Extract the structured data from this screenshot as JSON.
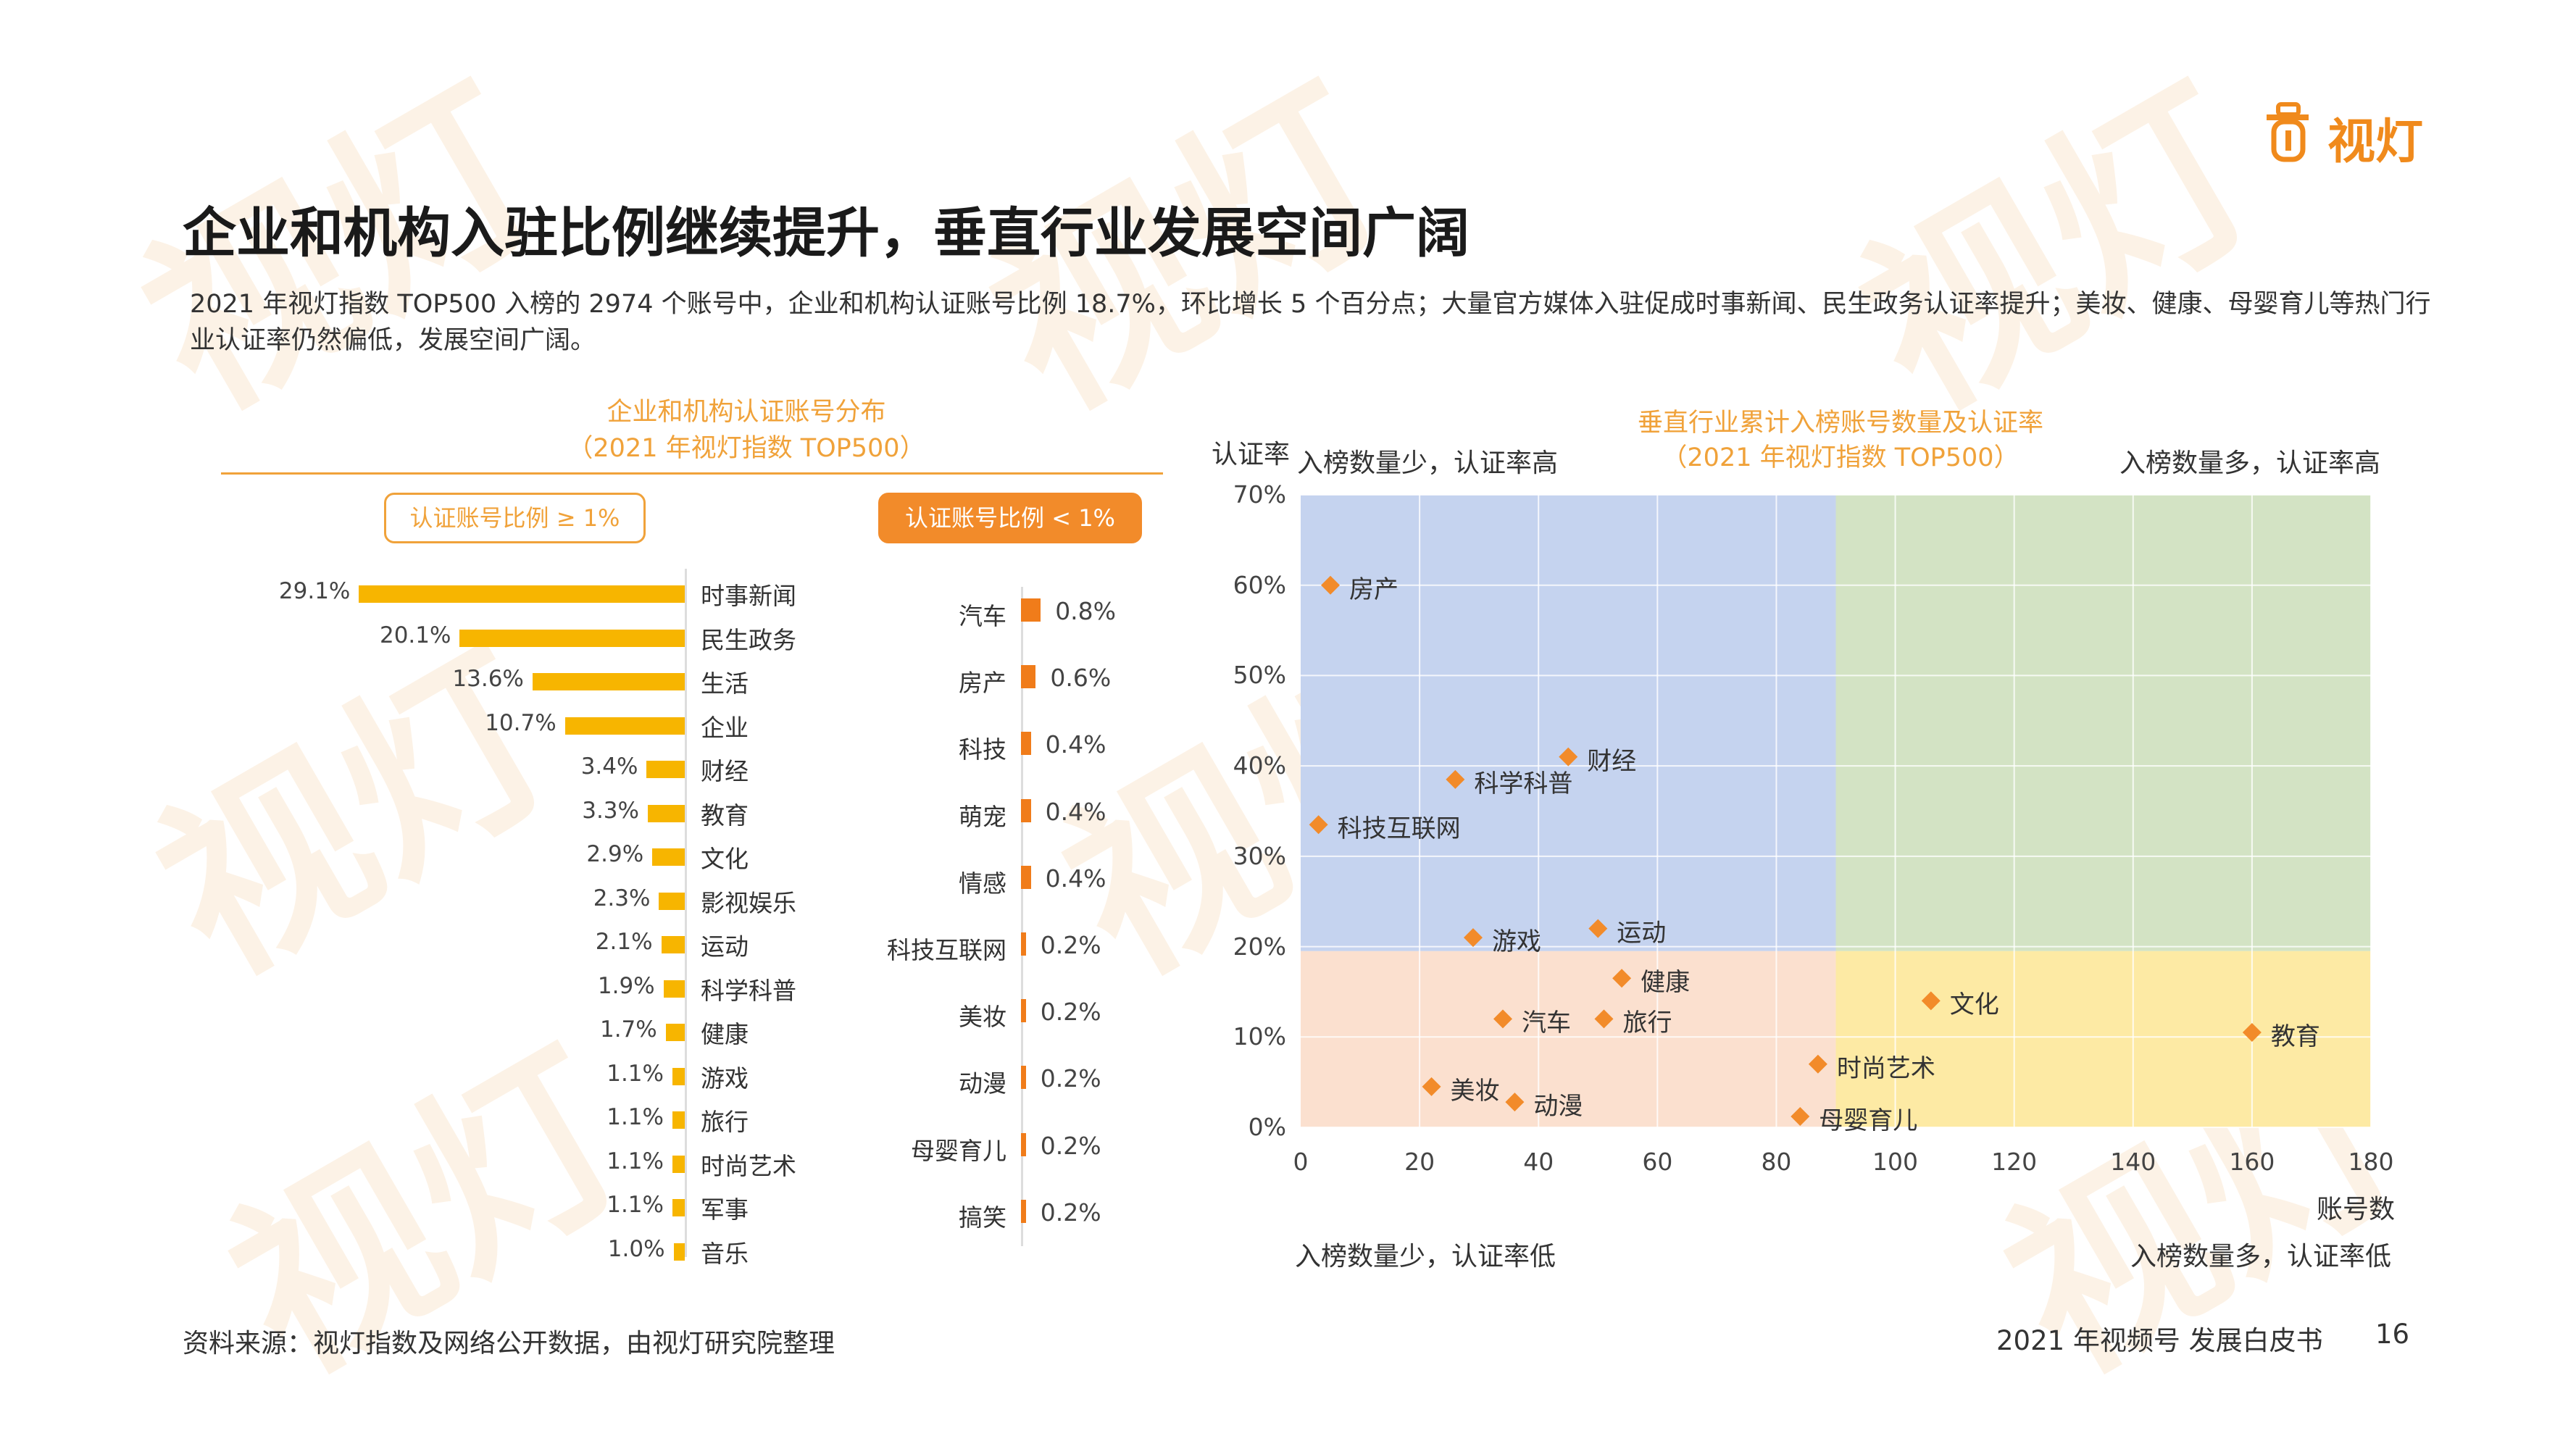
{
  "brand": {
    "logo_text": "视灯",
    "accent": "#f08a1c",
    "watermark_text": "视灯"
  },
  "title": "企业和机构入驻比例继续提升，垂直行业发展空间广阔",
  "intro": "2021 年视灯指数 TOP500 入榜的 2974 个账号中，企业和机构认证账号比例 18.7%，环比增长 5 个百分点；大量官方媒体入驻促成时事新闻、民生政务认证率提升；美妆、健康、母婴育儿等热门行业认证率仍然偏低，发展空间广阔。",
  "left_panel": {
    "title": "企业和机构认证账号分布",
    "subtitle": "（2021 年视灯指数 TOP500）",
    "pill_high": "认证账号比例 ≥ 1%",
    "pill_low": "认证账号比例 < 1%"
  },
  "right_panel": {
    "title": "垂直行业累计入榜账号数量及认证率",
    "subtitle": "（2021 年视灯指数 TOP500）",
    "y_axis_name": "认证率",
    "x_axis_name": "账号数",
    "quadrants": {
      "top_left": "入榜数量少，认证率高",
      "top_right": "入榜数量多，认证率高",
      "bottom_left": "入榜数量少，认证率低",
      "bottom_right": "入榜数量多，认证率低"
    }
  },
  "chart_data": [
    {
      "type": "bar",
      "orientation": "horizontal",
      "title": "认证账号比例 ≥ 1%",
      "categories": [
        "时事新闻",
        "民生政务",
        "生活",
        "企业",
        "财经",
        "教育",
        "文化",
        "影视娱乐",
        "运动",
        "科学科普",
        "健康",
        "游戏",
        "旅行",
        "时尚艺术",
        "军事",
        "音乐"
      ],
      "values": [
        29.1,
        20.1,
        13.6,
        10.7,
        3.4,
        3.3,
        2.9,
        2.3,
        2.1,
        1.9,
        1.7,
        1.1,
        1.1,
        1.1,
        1.1,
        1.0
      ],
      "value_labels": [
        "29.1%",
        "20.1%",
        "13.6%",
        "10.7%",
        "3.4%",
        "3.3%",
        "2.9%",
        "2.3%",
        "2.1%",
        "1.9%",
        "1.7%",
        "1.1%",
        "1.1%",
        "1.1%",
        "1.1%",
        "1.0%"
      ],
      "unit": "%",
      "color": "#f7b500"
    },
    {
      "type": "bar",
      "orientation": "horizontal",
      "title": "认证账号比例 < 1%",
      "categories": [
        "汽车",
        "房产",
        "科技",
        "萌宠",
        "情感",
        "科技互联网",
        "美妆",
        "动漫",
        "母婴育儿",
        "搞笑"
      ],
      "values": [
        0.8,
        0.6,
        0.4,
        0.4,
        0.4,
        0.2,
        0.2,
        0.2,
        0.2,
        0.2
      ],
      "value_labels": [
        "0.8%",
        "0.6%",
        "0.4%",
        "0.4%",
        "0.4%",
        "0.2%",
        "0.2%",
        "0.2%",
        "0.2%",
        "0.2%"
      ],
      "unit": "%",
      "color": "#f07c1a"
    },
    {
      "type": "scatter",
      "title": "垂直行业累计入榜账号数量及认证率",
      "xlabel": "账号数",
      "ylabel": "认证率",
      "xlim": [
        0,
        180
      ],
      "ylim": [
        0,
        70
      ],
      "x_ticks": [
        0,
        20,
        40,
        60,
        80,
        100,
        120,
        140,
        160,
        180
      ],
      "y_ticks": [
        0,
        10,
        20,
        30,
        40,
        50,
        60,
        70
      ],
      "y_tick_labels": [
        "0%",
        "10%",
        "20%",
        "30%",
        "40%",
        "50%",
        "60%",
        "70%"
      ],
      "x_split": 90,
      "y_split": 19.5,
      "quadrant_colors": {
        "top_left": "#c5d3ef",
        "top_right": "#d3e3c4",
        "bottom_left": "#fbe0cf",
        "bottom_right": "#fdeaa4"
      },
      "marker_color": "#f28b2a",
      "points": [
        {
          "label": "房产",
          "x": 5,
          "y": 60
        },
        {
          "label": "财经",
          "x": 45,
          "y": 41
        },
        {
          "label": "科学科普",
          "x": 26,
          "y": 38.5
        },
        {
          "label": "科技互联网",
          "x": 3,
          "y": 33.5
        },
        {
          "label": "游戏",
          "x": 29,
          "y": 21
        },
        {
          "label": "运动",
          "x": 50,
          "y": 22
        },
        {
          "label": "健康",
          "x": 54,
          "y": 16.5
        },
        {
          "label": "汽车",
          "x": 34,
          "y": 12
        },
        {
          "label": "旅行",
          "x": 51,
          "y": 12
        },
        {
          "label": "美妆",
          "x": 22,
          "y": 4.5
        },
        {
          "label": "动漫",
          "x": 36,
          "y": 2.8
        },
        {
          "label": "文化",
          "x": 106,
          "y": 14
        },
        {
          "label": "教育",
          "x": 160,
          "y": 10.5
        },
        {
          "label": "时尚艺术",
          "x": 87,
          "y": 7
        },
        {
          "label": "母婴育儿",
          "x": 84,
          "y": 1.2
        }
      ]
    }
  ],
  "footer": {
    "source": "资料来源：视灯指数及网络公开数据，由视灯研究院整理",
    "report_title": "2021 年视频号 发展白皮书",
    "page_number": "16"
  }
}
